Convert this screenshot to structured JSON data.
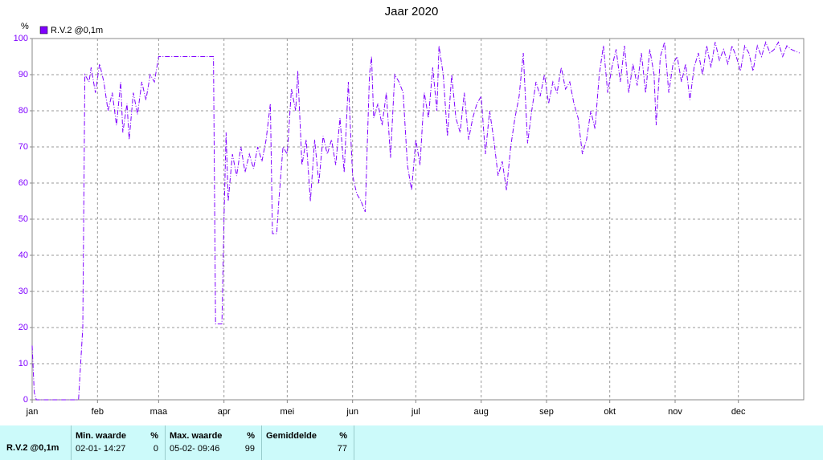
{
  "chart_data": {
    "type": "line",
    "title": "Jaar 2020",
    "y_label": "%",
    "x": [
      0,
      1,
      2,
      22,
      24,
      25,
      27,
      28,
      30,
      32,
      34,
      36,
      38,
      40,
      42,
      43,
      45,
      46,
      48,
      50,
      52,
      54,
      56,
      58,
      60,
      86,
      87,
      90,
      91,
      92,
      93,
      95,
      97,
      99,
      101,
      103,
      105,
      107,
      109,
      111,
      113,
      114,
      116,
      117,
      119,
      121,
      123,
      125,
      126,
      128,
      130,
      132,
      134,
      136,
      138,
      140,
      142,
      144,
      146,
      148,
      150,
      152,
      154,
      156,
      158,
      160,
      161,
      162,
      164,
      166,
      168,
      170,
      172,
      174,
      176,
      178,
      180,
      182,
      184,
      186,
      188,
      190,
      192,
      193,
      195,
      197,
      199,
      201,
      203,
      205,
      207,
      209,
      211,
      213,
      215,
      217,
      219,
      221,
      223,
      225,
      227,
      229,
      231,
      233,
      235,
      237,
      239,
      241,
      243,
      245,
      247,
      249,
      251,
      253,
      255,
      257,
      259,
      261,
      263,
      265,
      267,
      269,
      271,
      273,
      275,
      277,
      279,
      281,
      283,
      285,
      287,
      289,
      291,
      293,
      295,
      296,
      298,
      300,
      302,
      304,
      306,
      308,
      310,
      312,
      314,
      316,
      318,
      320,
      322,
      324,
      326,
      328,
      330,
      332,
      334,
      336,
      338,
      340,
      342,
      344,
      346,
      348,
      350,
      352,
      354,
      356,
      358,
      360,
      364
    ],
    "series": [
      {
        "name": "R.V.2 @0,1m",
        "color": "#7f00ff",
        "values": [
          15,
          2,
          0,
          0,
          20,
          90,
          88,
          92,
          85,
          93,
          88,
          80,
          85,
          76,
          88,
          74,
          82,
          72,
          85,
          79,
          88,
          83,
          90,
          88,
          95,
          95,
          21,
          21,
          50,
          74,
          55,
          68,
          62,
          70,
          63,
          68,
          64,
          70,
          66,
          72,
          82,
          46,
          46,
          55,
          70,
          68,
          86,
          80,
          91,
          65,
          72,
          55,
          72,
          60,
          73,
          68,
          72,
          65,
          78,
          63,
          88,
          62,
          57,
          55,
          52,
          90,
          95,
          78,
          82,
          76,
          85,
          67,
          90,
          88,
          85,
          65,
          58,
          72,
          65,
          85,
          78,
          92,
          80,
          98,
          90,
          73,
          90,
          78,
          74,
          85,
          72,
          78,
          82,
          84,
          68,
          80,
          72,
          62,
          66,
          58,
          70,
          78,
          84,
          96,
          71,
          80,
          88,
          84,
          90,
          82,
          88,
          85,
          92,
          86,
          88,
          82,
          78,
          68,
          72,
          80,
          75,
          90,
          98,
          85,
          92,
          97,
          88,
          98,
          85,
          93,
          87,
          96,
          85,
          97,
          90,
          76,
          95,
          99,
          85,
          93,
          95,
          88,
          93,
          83,
          92,
          96,
          90,
          98,
          92,
          99,
          94,
          97,
          93,
          98,
          95,
          91,
          98,
          96,
          91,
          98,
          95,
          99,
          96,
          97,
          99,
          95,
          98,
          97,
          96
        ]
      }
    ],
    "xlim": [
      0,
      366
    ],
    "xticks": [
      {
        "value": 0,
        "label": "jan"
      },
      {
        "value": 31,
        "label": "feb"
      },
      {
        "value": 60,
        "label": "maa"
      },
      {
        "value": 91,
        "label": "apr"
      },
      {
        "value": 121,
        "label": "mei"
      },
      {
        "value": 152,
        "label": "jun"
      },
      {
        "value": 182,
        "label": "jul"
      },
      {
        "value": 213,
        "label": "aug"
      },
      {
        "value": 244,
        "label": "sep"
      },
      {
        "value": 274,
        "label": "okt"
      },
      {
        "value": 305,
        "label": "nov"
      },
      {
        "value": 335,
        "label": "dec"
      }
    ],
    "ylim": [
      0,
      100
    ],
    "yticks": [
      0,
      10,
      20,
      30,
      40,
      50,
      60,
      70,
      80,
      90,
      100
    ],
    "grid": true
  },
  "table": {
    "label": "R.V.2 @0,1m",
    "columns": [
      {
        "header": "Min. waarde",
        "unit": "%",
        "time": "02-01- 14:27",
        "value": "0"
      },
      {
        "header": "Max. waarde",
        "unit": "%",
        "time": "05-02- 09:46",
        "value": "99"
      },
      {
        "header": "Gemiddelde",
        "unit": "%",
        "value": "77"
      }
    ]
  }
}
